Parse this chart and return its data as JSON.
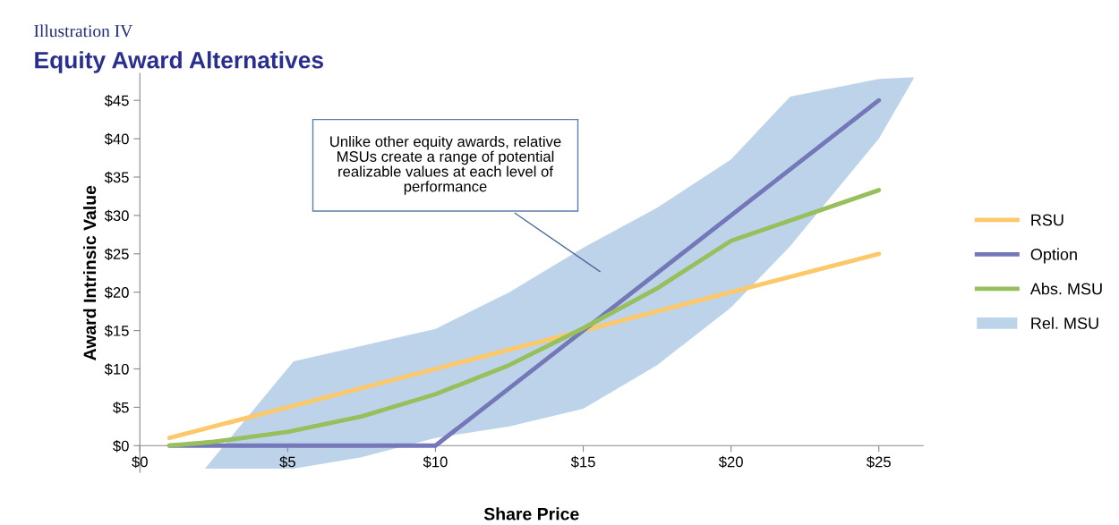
{
  "chart_data": {
    "type": "line",
    "title": "Equity Award Alternatives",
    "subtitle": "Illustration IV",
    "xlabel": "Share Price",
    "ylabel": "Award Intrinsic Value",
    "xlim": [
      0,
      26.5
    ],
    "ylim": [
      -3.5,
      48.5
    ],
    "xticks": [
      {
        "value": 0,
        "label": "$0"
      },
      {
        "value": 5,
        "label": "$5"
      },
      {
        "value": 10,
        "label": "$10"
      },
      {
        "value": 15,
        "label": "$15"
      },
      {
        "value": 20,
        "label": "$20"
      },
      {
        "value": 25,
        "label": "$25"
      }
    ],
    "yticks": [
      {
        "value": 0,
        "label": "$0"
      },
      {
        "value": 5,
        "label": "$5"
      },
      {
        "value": 10,
        "label": "$10"
      },
      {
        "value": 15,
        "label": "$15"
      },
      {
        "value": 20,
        "label": "$20"
      },
      {
        "value": 25,
        "label": "$25"
      },
      {
        "value": 30,
        "label": "$30"
      },
      {
        "value": 35,
        "label": "$35"
      },
      {
        "value": 40,
        "label": "$40"
      },
      {
        "value": 45,
        "label": "$45"
      }
    ],
    "grid": false,
    "legend": "right",
    "marker": "none",
    "line_style": "solid",
    "series": [
      {
        "name": "RSU",
        "color": "#fdc86a",
        "x": [
          1,
          5,
          10,
          15,
          20,
          25
        ],
        "values": [
          1,
          5,
          10,
          15,
          20,
          25
        ]
      },
      {
        "name": "Option",
        "color": "#7478b8",
        "x": [
          1,
          10,
          15,
          20,
          25
        ],
        "values": [
          0,
          0,
          15,
          30,
          45
        ]
      },
      {
        "name": "Abs. MSU",
        "color": "#97c05c",
        "x": [
          1,
          2.5,
          5,
          7.5,
          10,
          12.5,
          15,
          17.5,
          20,
          25
        ],
        "values": [
          0,
          0.5,
          1.8,
          3.8,
          6.7,
          10.5,
          15.3,
          20.5,
          26.7,
          33.3
        ]
      },
      {
        "name": "Rel. MSU",
        "type": "area",
        "color": "#bcd3e9",
        "x": [
          2.2,
          5.2,
          7.5,
          10,
          12.5,
          15,
          17.5,
          20,
          22,
          25,
          26.2
        ],
        "values": [
          null,
          null,
          null,
          null,
          null,
          null,
          null,
          null,
          null,
          null,
          null
        ],
        "lower": [
          -3,
          -3,
          -1.5,
          1,
          2.5,
          4.8,
          10.5,
          18,
          26,
          40,
          48
        ],
        "upper": [
          -3,
          11,
          13,
          15.2,
          20,
          25.8,
          31,
          37.3,
          45.5,
          47.8,
          48
        ]
      }
    ],
    "annotations": [
      "Unlike other equity awards, relative\nMSUs create a range of potential\nrealizable values at each level of\nperformance"
    ]
  }
}
